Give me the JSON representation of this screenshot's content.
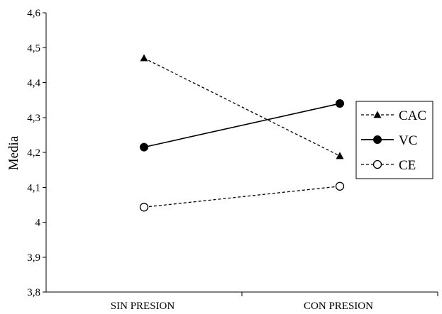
{
  "chart_data": {
    "type": "line",
    "title": "",
    "xlabel": "",
    "ylabel": "Media",
    "categories": [
      "SIN PRESION",
      "CON PRESION"
    ],
    "ylim": [
      3.8,
      4.6
    ],
    "yticks": [
      "3,8",
      "3,9",
      "4",
      "4,1",
      "4,2",
      "4,3",
      "4,4",
      "4,5",
      "4,6"
    ],
    "grid": false,
    "legend_position": "right",
    "series": [
      {
        "name": "CAC",
        "values": [
          4.47,
          4.19
        ],
        "line_style": "dashed",
        "marker": "triangle-filled",
        "color": "#000000"
      },
      {
        "name": "VC",
        "values": [
          4.215,
          4.34
        ],
        "line_style": "solid",
        "marker": "circle-filled",
        "color": "#000000"
      },
      {
        "name": "CE",
        "values": [
          4.043,
          4.103
        ],
        "line_style": "dashed",
        "marker": "circle-open",
        "color": "#000000"
      }
    ]
  }
}
